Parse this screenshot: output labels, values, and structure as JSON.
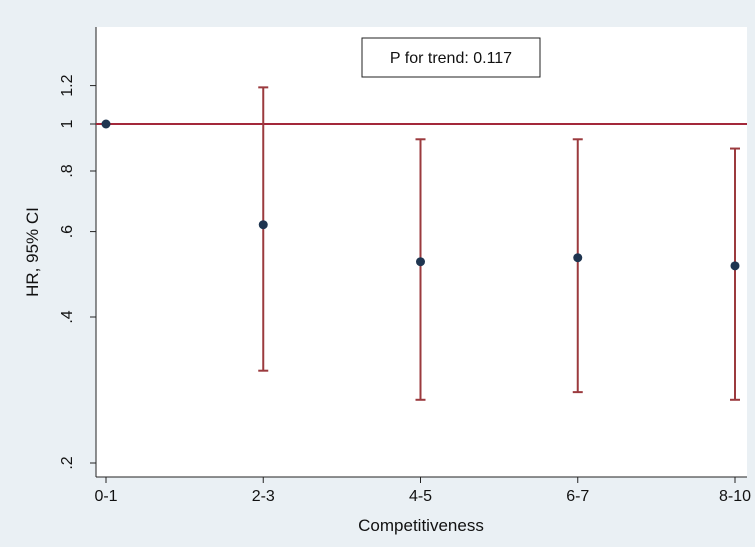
{
  "chart_data": {
    "type": "scatter",
    "title": "",
    "xlabel": "Competitiveness",
    "ylabel": "HR, 95% CI",
    "y_scale": "log",
    "ylim": [
      0.19,
      1.45
    ],
    "y_ticks": [
      {
        "value": 0.2,
        "label": ".2"
      },
      {
        "value": 0.4,
        "label": ".4"
      },
      {
        "value": 0.6,
        "label": ".6"
      },
      {
        "value": 0.8,
        "label": ".8"
      },
      {
        "value": 1.0,
        "label": "1"
      },
      {
        "value": 1.2,
        "label": "1.2"
      }
    ],
    "categories": [
      "0-1",
      "2-3",
      "4-5",
      "6-7",
      "8-10"
    ],
    "reference_line": 1.0,
    "points": [
      {
        "x": "0-1",
        "hr": 1.0
      },
      {
        "x": "2-3",
        "hr": 0.62,
        "lower": 0.31,
        "upper": 1.19
      },
      {
        "x": "4-5",
        "hr": 0.52,
        "lower": 0.27,
        "upper": 0.93
      },
      {
        "x": "6-7",
        "hr": 0.53,
        "lower": 0.28,
        "upper": 0.93
      },
      {
        "x": "8-10",
        "hr": 0.51,
        "lower": 0.27,
        "upper": 0.89
      }
    ],
    "annotation": "P for trend: 0.117",
    "grid": false,
    "colors": {
      "background": "#eaf0f4",
      "plot_background": "#ffffff",
      "reference_line": "#a3283a",
      "error_bar": "#9b3a3e",
      "marker": "#1f3550"
    }
  }
}
